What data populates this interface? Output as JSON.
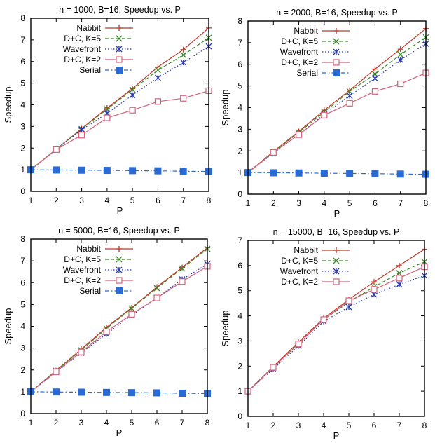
{
  "chart_data": [
    {
      "type": "line",
      "title": "n = 1000, B=16, Speedup vs. P",
      "xlabel": "P",
      "ylabel": "Speedup",
      "xlim": [
        1,
        8
      ],
      "ylim": [
        0,
        8
      ],
      "xticks": [
        1,
        2,
        3,
        4,
        5,
        6,
        7,
        8
      ],
      "yticks": [
        0,
        1,
        2,
        3,
        4,
        5,
        6,
        7,
        8
      ],
      "legend_position": "top-left",
      "x": [
        1,
        2,
        3,
        4,
        5,
        6,
        7,
        8
      ],
      "series": [
        {
          "name": "Nabbit",
          "color": "#c0392b",
          "marker": "plus",
          "dash": "solid",
          "values": [
            1.0,
            1.95,
            2.9,
            3.85,
            4.75,
            5.75,
            6.55,
            7.55
          ]
        },
        {
          "name": "D+C, K=5",
          "color": "#3a8a2a",
          "marker": "x",
          "dash": "dashed",
          "values": [
            1.0,
            1.95,
            2.88,
            3.8,
            4.7,
            5.6,
            6.3,
            7.1
          ]
        },
        {
          "name": "Wavefront",
          "color": "#2a3ab0",
          "marker": "star",
          "dash": "dotted",
          "values": [
            1.0,
            1.93,
            2.85,
            3.6,
            4.45,
            5.25,
            5.95,
            6.7
          ]
        },
        {
          "name": "D+C, K=2",
          "color": "#d4607a",
          "marker": "square-open",
          "dash": "solid",
          "values": [
            1.0,
            1.93,
            2.6,
            3.4,
            3.75,
            4.15,
            4.3,
            4.65
          ]
        },
        {
          "name": "Serial",
          "color": "#2a6ad4",
          "marker": "square-filled",
          "dash": "dashdot",
          "values": [
            1.0,
            0.99,
            0.98,
            0.97,
            0.96,
            0.95,
            0.93,
            0.92
          ]
        }
      ]
    },
    {
      "type": "line",
      "title": "n = 2000, B=16, Speedup vs. P",
      "xlabel": "P",
      "ylabel": "Speedup",
      "xlim": [
        1,
        8
      ],
      "ylim": [
        0,
        8
      ],
      "xticks": [
        1,
        2,
        3,
        4,
        5,
        6,
        7,
        8
      ],
      "yticks": [
        0,
        1,
        2,
        3,
        4,
        5,
        6,
        7,
        8
      ],
      "legend_position": "top-left",
      "x": [
        1,
        2,
        3,
        4,
        5,
        6,
        7,
        8
      ],
      "series": [
        {
          "name": "Nabbit",
          "color": "#c0392b",
          "marker": "plus",
          "dash": "solid",
          "values": [
            1.0,
            1.97,
            2.9,
            3.88,
            4.8,
            5.78,
            6.7,
            7.65
          ]
        },
        {
          "name": "D+C, K=5",
          "color": "#3a8a2a",
          "marker": "x",
          "dash": "dashed",
          "values": [
            1.0,
            1.95,
            2.85,
            3.8,
            4.75,
            5.55,
            6.45,
            7.25
          ]
        },
        {
          "name": "Wavefront",
          "color": "#2a3ab0",
          "marker": "star",
          "dash": "dotted",
          "values": [
            1.0,
            1.9,
            2.75,
            3.7,
            4.55,
            5.35,
            6.2,
            6.95
          ]
        },
        {
          "name": "D+C, K=2",
          "color": "#d4607a",
          "marker": "square-open",
          "dash": "solid",
          "values": [
            1.0,
            1.93,
            2.75,
            3.65,
            4.2,
            4.75,
            5.1,
            5.6
          ]
        },
        {
          "name": "Serial",
          "color": "#2a6ad4",
          "marker": "square-filled",
          "dash": "dashdot",
          "values": [
            1.0,
            0.99,
            0.98,
            0.97,
            0.96,
            0.95,
            0.93,
            0.92
          ]
        }
      ]
    },
    {
      "type": "line",
      "title": "n = 5000, B=16, Speedup vs. P",
      "xlabel": "P",
      "ylabel": "Speedup",
      "xlim": [
        1,
        8
      ],
      "ylim": [
        0,
        8
      ],
      "xticks": [
        1,
        2,
        3,
        4,
        5,
        6,
        7,
        8
      ],
      "yticks": [
        0,
        1,
        2,
        3,
        4,
        5,
        6,
        7,
        8
      ],
      "legend_position": "top-left",
      "x": [
        1,
        2,
        3,
        4,
        5,
        6,
        7,
        8
      ],
      "series": [
        {
          "name": "Nabbit",
          "color": "#c0392b",
          "marker": "plus",
          "dash": "solid",
          "values": [
            1.0,
            1.97,
            2.95,
            3.95,
            4.85,
            5.8,
            6.7,
            7.6
          ]
        },
        {
          "name": "D+C, K=5",
          "color": "#3a8a2a",
          "marker": "x",
          "dash": "dashed",
          "values": [
            1.0,
            1.96,
            2.9,
            3.9,
            4.82,
            5.75,
            6.65,
            7.55
          ]
        },
        {
          "name": "Wavefront",
          "color": "#2a3ab0",
          "marker": "star",
          "dash": "dotted",
          "values": [
            1.0,
            1.9,
            2.78,
            3.65,
            4.5,
            5.3,
            6.15,
            6.85
          ]
        },
        {
          "name": "D+C, K=2",
          "color": "#d4607a",
          "marker": "square-open",
          "dash": "solid",
          "values": [
            1.0,
            1.92,
            2.82,
            3.75,
            4.55,
            5.3,
            6.05,
            6.75
          ]
        },
        {
          "name": "Serial",
          "color": "#2a6ad4",
          "marker": "square-filled",
          "dash": "dashdot",
          "values": [
            1.0,
            0.99,
            0.98,
            0.97,
            0.96,
            0.95,
            0.93,
            0.92
          ]
        }
      ]
    },
    {
      "type": "line",
      "title": "n = 15000, B=16, Speedup vs. P",
      "xlabel": "P",
      "ylabel": "Speedup",
      "xlim": [
        1,
        8
      ],
      "ylim": [
        0,
        7
      ],
      "xticks": [
        1,
        2,
        3,
        4,
        5,
        6,
        7,
        8
      ],
      "yticks": [
        0,
        1,
        2,
        3,
        4,
        5,
        6,
        7
      ],
      "legend_position": "top-left",
      "x": [
        1,
        2,
        3,
        4,
        5,
        6,
        7,
        8
      ],
      "series": [
        {
          "name": "Nabbit",
          "color": "#c0392b",
          "marker": "plus",
          "dash": "solid",
          "values": [
            1.0,
            1.98,
            2.95,
            3.9,
            4.65,
            5.35,
            6.0,
            6.65
          ]
        },
        {
          "name": "D+C, K=5",
          "color": "#3a8a2a",
          "marker": "x",
          "dash": "dashed",
          "values": [
            1.0,
            1.95,
            2.9,
            3.85,
            4.55,
            5.15,
            5.7,
            6.15
          ]
        },
        {
          "name": "Wavefront",
          "color": "#2a3ab0",
          "marker": "star",
          "dash": "dotted",
          "values": [
            1.0,
            1.88,
            2.8,
            3.78,
            4.35,
            4.85,
            5.25,
            5.6
          ]
        },
        {
          "name": "D+C, K=2",
          "color": "#d4607a",
          "marker": "square-open",
          "dash": "solid",
          "values": [
            1.0,
            1.95,
            2.88,
            3.85,
            4.6,
            5.05,
            5.5,
            5.95
          ]
        }
      ]
    }
  ]
}
